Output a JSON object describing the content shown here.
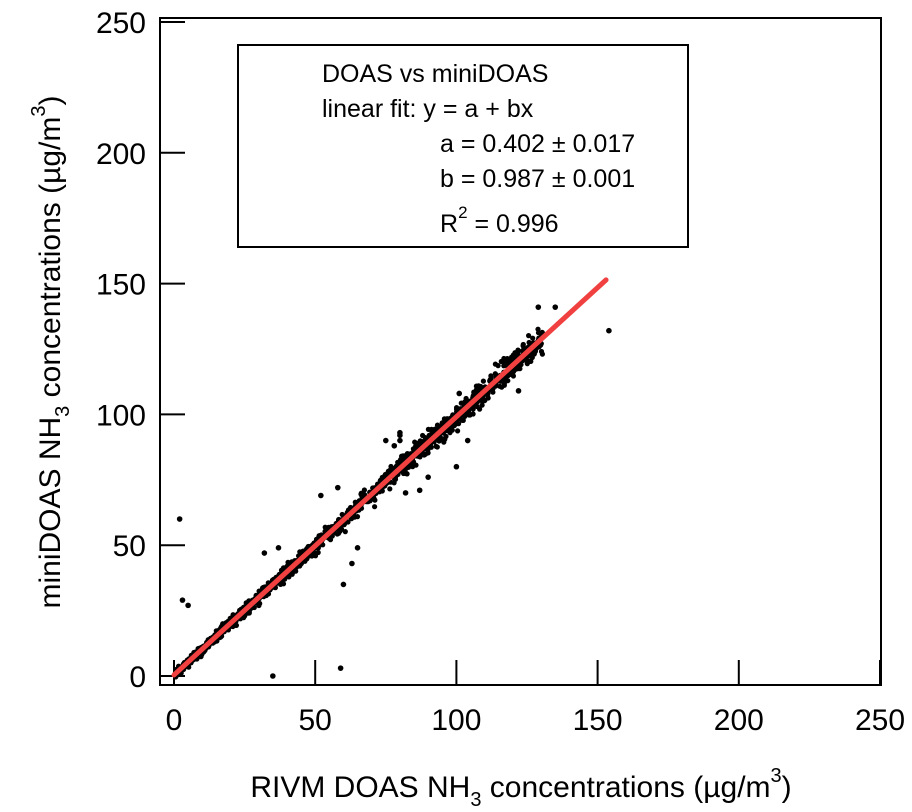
{
  "chart_data": {
    "type": "scatter",
    "xlabel": {
      "pre": "RIVM DOAS NH",
      "sub": "3",
      "mid": " concentrations (µg/m",
      "sup": "3",
      "post": ")"
    },
    "ylabel": {
      "pre": "miniDOAS NH",
      "sub": "3",
      "mid": " concentrations (µg/m",
      "sup": "3",
      "post": ")"
    },
    "xlim": [
      0,
      250
    ],
    "ylim": [
      0,
      250
    ],
    "x_ticks": [
      0,
      50,
      100,
      150,
      200,
      250
    ],
    "y_ticks": [
      0,
      50,
      100,
      150,
      200,
      250
    ],
    "grid": false,
    "fit": {
      "a": 0.402,
      "b": 0.987,
      "x_range": [
        0,
        153
      ],
      "color": "#f04040"
    },
    "point_color": "#000000",
    "outliers": [
      [
        2,
        60
      ],
      [
        3,
        29
      ],
      [
        5,
        27
      ],
      [
        35,
        0
      ],
      [
        59,
        3
      ],
      [
        154,
        132
      ],
      [
        32,
        47
      ],
      [
        37,
        49
      ],
      [
        63,
        43
      ],
      [
        65,
        49
      ],
      [
        52,
        69
      ],
      [
        58,
        72
      ],
      [
        82,
        70
      ],
      [
        87,
        71
      ],
      [
        90,
        76
      ],
      [
        60,
        35
      ],
      [
        75,
        90
      ],
      [
        78,
        88
      ],
      [
        80,
        90
      ],
      [
        80,
        92
      ],
      [
        80,
        93
      ],
      [
        101,
        108
      ],
      [
        106,
        107
      ],
      [
        129,
        141
      ],
      [
        135,
        141
      ],
      [
        122,
        109
      ],
      [
        104,
        90
      ],
      [
        100,
        80
      ]
    ],
    "cloud_seed_count": 1400,
    "annotation": {
      "line1": "DOAS vs miniDOAS",
      "line2": "linear fit:  y = a +  bx",
      "line3": "a = 0.402 ± 0.017",
      "line4": "b = 0.987 ± 0.001",
      "line5_pre": "R",
      "line5_sup": "2",
      "line5_post": " = 0.996"
    }
  }
}
